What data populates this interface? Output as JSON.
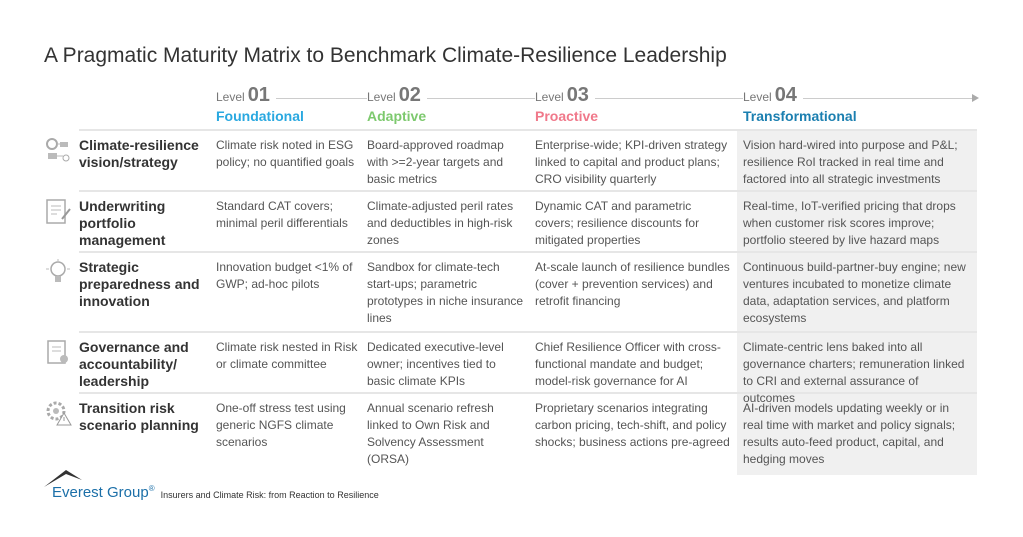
{
  "title": "A Pragmatic Maturity Matrix to Benchmark Climate-Resilience Leadership",
  "levels": [
    {
      "prefix": "Level",
      "num": "01",
      "name": "Foundational",
      "color": "#29a8e0"
    },
    {
      "prefix": "Level",
      "num": "02",
      "name": "Adaptive",
      "color": "#7dc96e"
    },
    {
      "prefix": "Level",
      "num": "03",
      "name": "Proactive",
      "color": "#f0788a"
    },
    {
      "prefix": "Level",
      "num": "04",
      "name": "Transformational",
      "color": "#1b7fb0"
    }
  ],
  "rows": [
    {
      "icon": "strategy-flow-icon",
      "label": "Climate-resilience vision/strategy",
      "cells": [
        "Climate risk noted in ESG policy; no quantified goals",
        "Board-approved roadmap with >=2-year targets and basic metrics",
        "Enterprise-wide; KPI-driven strategy linked to capital and product plans; CRO visibility quarterly",
        "Vision hard-wired into purpose and P&L; resilience RoI tracked in real time and factored into all strategic investments"
      ]
    },
    {
      "icon": "document-pen-icon",
      "label": "Underwriting portfolio management",
      "cells": [
        "Standard CAT covers; minimal peril differentials",
        "Climate-adjusted peril rates and deductibles in high-risk zones",
        "Dynamic CAT and parametric covers; resilience discounts for mitigated properties",
        "Real-time, IoT-verified pricing that drops when customer risk scores improve; portfolio steered by live hazard maps"
      ]
    },
    {
      "icon": "lightbulb-icon",
      "label": "Strategic preparedness and innovation",
      "cells": [
        "Innovation budget <1% of GWP; ad-hoc pilots",
        "Sandbox for climate-tech start-ups; parametric prototypes in niche insurance lines",
        "At-scale launch of resilience bundles (cover + prevention services) and retrofit financing",
        "Continuous build-partner-buy engine; new ventures incubated to monetize climate data, adaptation services, and platform ecosystems"
      ]
    },
    {
      "icon": "certificate-icon",
      "label": "Governance and accountability/ leadership",
      "cells": [
        "Climate risk nested in Risk or climate committee",
        "Dedicated executive-level owner; incentives tied to basic climate KPIs",
        "Chief Resilience Officer with cross-functional mandate and budget; model-risk governance for AI",
        "Climate-centric lens baked into all governance charters; remuneration linked to CRI and external assurance of outcomes"
      ]
    },
    {
      "icon": "gear-warning-icon",
      "label": "Transition risk scenario planning",
      "cells": [
        "One-off stress test using generic NGFS climate scenarios",
        "Annual scenario refresh linked to Own Risk and Solvency Assessment (ORSA)",
        "Proprietary scenarios integrating carbon pricing, tech-shift, and policy shocks; business actions pre-agreed",
        "AI-driven models updating weekly or in real time with market and policy signals; results auto-feed product, capital, and hedging moves"
      ]
    }
  ],
  "footer": {
    "brand": "Everest Group",
    "reg": "®",
    "source": "Insurers and Climate Risk: from Reaction to Resilience"
  }
}
